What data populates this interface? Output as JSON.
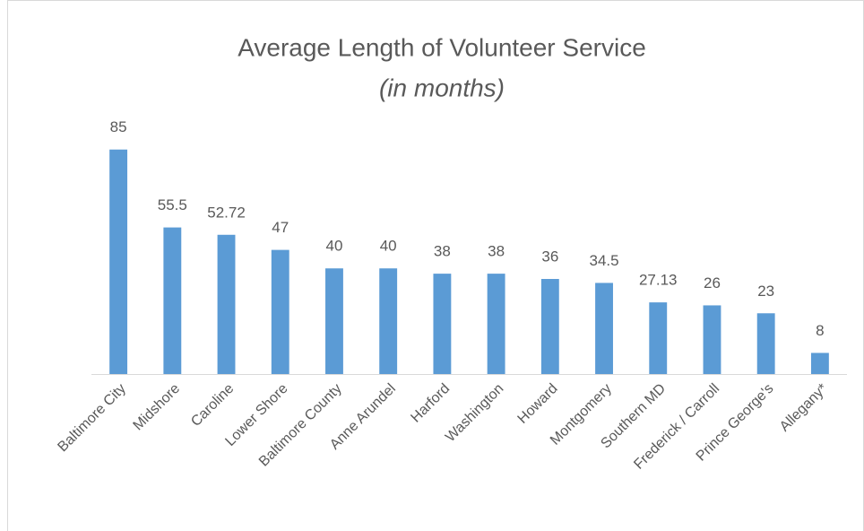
{
  "chart_data": {
    "type": "bar",
    "title": "Average Length of Volunteer Service",
    "subtitle": "(in months)",
    "categories": [
      "Baltimore City",
      "Midshore",
      "Caroline",
      "Lower Shore",
      "Baltimore County",
      "Anne Arundel",
      "Harford",
      "Washington",
      "Howard",
      "Montgomery",
      "Southern MD",
      "Frederick / Carroll",
      "Prince George's",
      "Allegany*"
    ],
    "values": [
      85,
      55.5,
      52.72,
      47,
      40,
      40,
      38,
      38,
      36,
      34.5,
      27.13,
      26,
      23,
      8
    ],
    "color": "#5b9bd5",
    "ylim": [
      0,
      90
    ]
  }
}
